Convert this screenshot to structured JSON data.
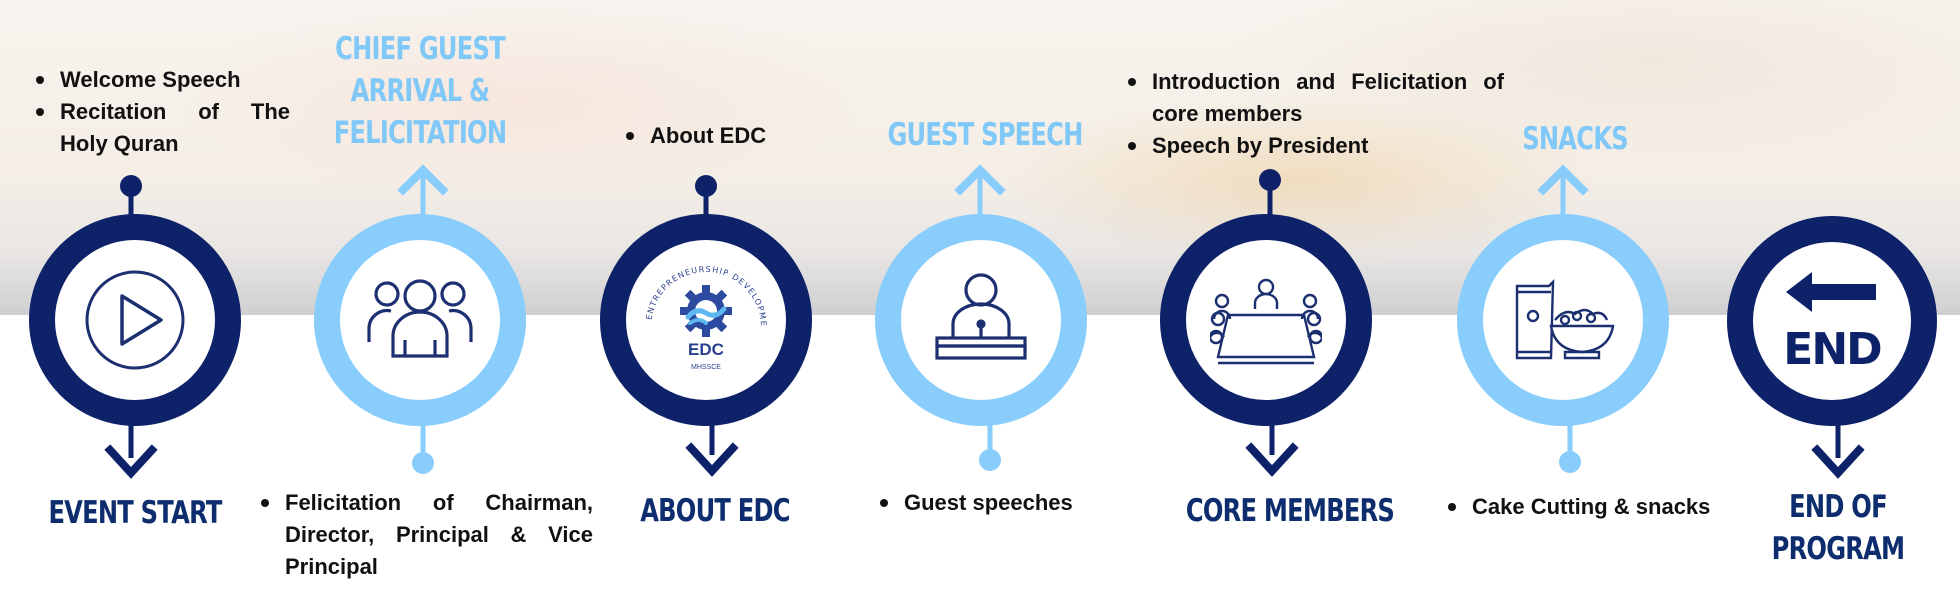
{
  "colors": {
    "dark_navy": "#0d2268",
    "light_blue": "#88cdfb",
    "icon_navy": "#1c2f70"
  },
  "steps": [
    {
      "heading": "EVENT START",
      "icon": "play-icon",
      "bullets": [
        "Welcome Speech",
        "Recitation of The Holy Quran"
      ]
    },
    {
      "heading": "CHIEF GUEST ARRIVAL & FELICITATION",
      "heading_lines": [
        "CHIEF GUEST",
        "ARRIVAL &",
        "FELICITATION"
      ],
      "icon": "group-people-icon",
      "bullets": [
        "Felicitation of Chairman, Director, Principal & Vice Principal"
      ]
    },
    {
      "heading": "ABOUT EDC",
      "icon": "edc-logo",
      "logo": {
        "ring_text": "ENTREPRENEURSHIP DEVELOPMENT CELL",
        "name": "EDC",
        "sub": "MHSSCE"
      },
      "bullets": [
        "About EDC"
      ]
    },
    {
      "heading": "GUEST SPEECH",
      "icon": "speaker-podium-icon",
      "bullets": [
        "Guest speeches"
      ]
    },
    {
      "heading": "CORE MEMBERS",
      "icon": "meeting-table-icon",
      "bullets": [
        "Introduction and Felicitation of core members",
        "Speech by President"
      ]
    },
    {
      "heading": "SNACKS",
      "icon": "snacks-bowl-icon",
      "bullets": [
        "Cake Cutting & snacks"
      ]
    },
    {
      "heading": "END OF PROGRAM",
      "heading_lines": [
        "END OF",
        "PROGRAM"
      ],
      "icon": "end-sign-icon",
      "end_label": "END"
    }
  ]
}
